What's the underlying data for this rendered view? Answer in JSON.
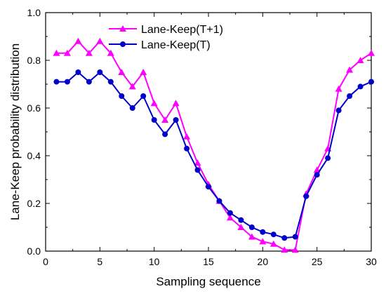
{
  "chart_data": {
    "type": "line",
    "xlabel": "Sampling sequence",
    "ylabel": "Lane-Keep probability distribution",
    "xlim": [
      0,
      30
    ],
    "ylim": [
      0.0,
      1.0
    ],
    "xticks": [
      0,
      5,
      10,
      15,
      20,
      25,
      30
    ],
    "yticks": [
      0.0,
      0.2,
      0.4,
      0.6,
      0.8,
      1.0
    ],
    "xtick_labels": [
      "0",
      "5",
      "10",
      "15",
      "20",
      "25",
      "30"
    ],
    "ytick_labels": [
      "0.0",
      "0.2",
      "0.4",
      "0.6",
      "0.8",
      "1.0"
    ],
    "grid": false,
    "legend_position": "top-center",
    "x": [
      1,
      2,
      3,
      4,
      5,
      6,
      7,
      8,
      9,
      10,
      11,
      12,
      13,
      14,
      15,
      16,
      17,
      18,
      19,
      20,
      21,
      22,
      23,
      24,
      25,
      26,
      27,
      28,
      29,
      30
    ],
    "series": [
      {
        "name": "Lane-Keep(T+1)",
        "color": "#ff00ff",
        "marker": "triangle",
        "values": [
          0.83,
          0.83,
          0.88,
          0.83,
          0.88,
          0.83,
          0.75,
          0.69,
          0.75,
          0.62,
          0.55,
          0.62,
          0.48,
          0.37,
          0.28,
          0.21,
          0.14,
          0.1,
          0.06,
          0.04,
          0.03,
          0.005,
          0.005,
          0.24,
          0.34,
          0.43,
          0.68,
          0.76,
          0.8,
          0.83
        ]
      },
      {
        "name": "Lane-Keep(T)",
        "color": "#0000cc",
        "marker": "circle",
        "values": [
          0.71,
          0.71,
          0.75,
          0.71,
          0.75,
          0.71,
          0.65,
          0.6,
          0.65,
          0.55,
          0.49,
          0.55,
          0.43,
          0.34,
          0.27,
          0.21,
          0.16,
          0.13,
          0.1,
          0.08,
          0.07,
          0.055,
          0.06,
          0.23,
          0.32,
          0.39,
          0.59,
          0.65,
          0.69,
          0.71
        ]
      }
    ]
  }
}
